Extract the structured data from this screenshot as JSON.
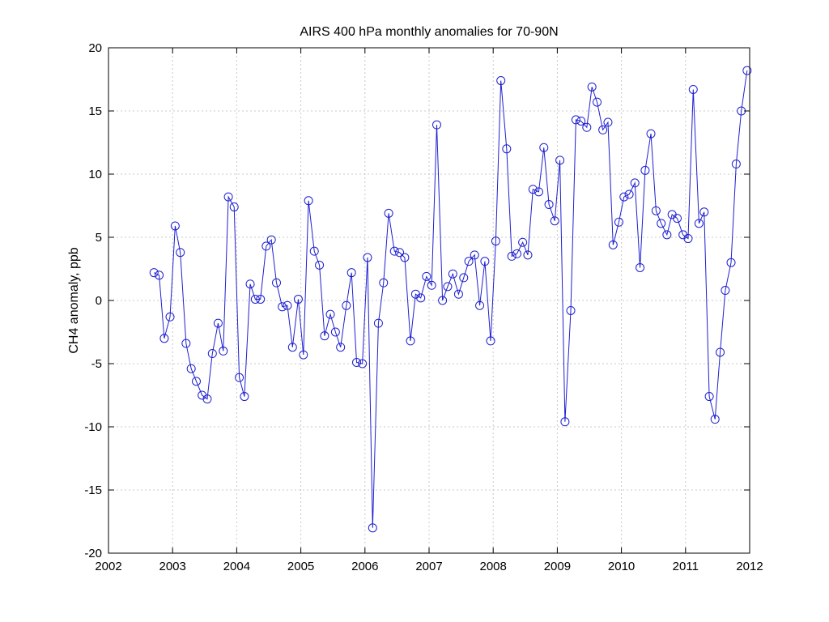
{
  "chart_data": {
    "type": "line",
    "title": "AIRS 400 hPa monthly anomalies for  70-90N",
    "xlabel": "",
    "ylabel": "CH4 anomaly, ppb",
    "xlim": [
      2002,
      2012
    ],
    "ylim": [
      -20,
      20
    ],
    "xticks": [
      "2002",
      "2003",
      "2004",
      "2005",
      "2006",
      "2007",
      "2008",
      "2009",
      "2010",
      "2011",
      "2012"
    ],
    "yticks": [
      "20",
      "15",
      "10",
      "5",
      "0",
      "-5",
      "-10",
      "-15",
      "-20"
    ],
    "grid": true,
    "marker": "circle",
    "line_color": "#1f1fd0",
    "series": [
      {
        "x": [
          2002.71,
          2002.79,
          2002.87,
          2002.96,
          2003.04,
          2003.12,
          2003.21,
          2003.29,
          2003.37,
          2003.46,
          2003.54,
          2003.62,
          2003.71,
          2003.79,
          2003.87,
          2003.96,
          2004.04,
          2004.12,
          2004.21,
          2004.29,
          2004.37,
          2004.46,
          2004.54,
          2004.62,
          2004.71,
          2004.79,
          2004.87,
          2004.96,
          2005.04,
          2005.12,
          2005.21,
          2005.29,
          2005.37,
          2005.46,
          2005.54,
          2005.62,
          2005.71,
          2005.79,
          2005.87,
          2005.96,
          2006.04,
          2006.12,
          2006.21,
          2006.29,
          2006.37,
          2006.46,
          2006.54,
          2006.62,
          2006.71,
          2006.79,
          2006.87,
          2006.96,
          2007.04,
          2007.12,
          2007.21,
          2007.29,
          2007.37,
          2007.46,
          2007.54,
          2007.62,
          2007.71,
          2007.79,
          2007.87,
          2007.96,
          2008.04,
          2008.12,
          2008.21,
          2008.29,
          2008.37,
          2008.46,
          2008.54,
          2008.62,
          2008.71,
          2008.79,
          2008.87,
          2008.96,
          2009.04,
          2009.12,
          2009.21,
          2009.29,
          2009.37,
          2009.46,
          2009.54,
          2009.62,
          2009.71,
          2009.79,
          2009.87,
          2009.96,
          2010.04,
          2010.12,
          2010.21,
          2010.29,
          2010.37,
          2010.46,
          2010.54,
          2010.62,
          2010.71,
          2010.79,
          2010.87,
          2010.96,
          2011.04,
          2011.12,
          2011.21,
          2011.29,
          2011.37,
          2011.46,
          2011.54,
          2011.62,
          2011.71,
          2011.79,
          2011.87,
          2011.96
        ],
        "y": [
          2.2,
          2.0,
          -3.0,
          -1.3,
          5.9,
          3.8,
          -3.4,
          -5.4,
          -6.4,
          -7.5,
          -7.8,
          -4.2,
          -1.8,
          -4.0,
          8.2,
          7.4,
          -6.1,
          -7.6,
          1.3,
          0.1,
          0.1,
          4.3,
          4.8,
          1.4,
          -0.5,
          -0.4,
          -3.7,
          0.1,
          -4.3,
          7.9,
          3.9,
          2.8,
          -2.8,
          -1.1,
          -2.5,
          -3.7,
          -0.4,
          2.2,
          -4.9,
          -5.0,
          3.4,
          -18.0,
          -1.8,
          1.4,
          6.9,
          3.9,
          3.8,
          3.4,
          -3.2,
          0.5,
          0.2,
          1.9,
          1.2,
          13.9,
          0.0,
          1.1,
          2.1,
          0.5,
          1.8,
          3.1,
          3.6,
          -0.4,
          3.1,
          -3.2,
          4.7,
          17.4,
          12.0,
          3.5,
          3.7,
          4.6,
          3.6,
          8.8,
          8.6,
          12.1,
          7.6,
          6.3,
          11.1,
          -9.6,
          -0.8,
          14.3,
          14.2,
          13.7,
          16.9,
          15.7,
          13.5,
          14.1,
          4.4,
          6.2,
          8.2,
          8.4,
          9.3,
          2.6,
          10.3,
          13.2,
          7.1,
          6.1,
          5.2,
          6.8,
          6.5,
          5.2,
          4.9,
          16.7,
          6.1,
          7.0,
          -7.6,
          -9.4,
          -4.1,
          0.8,
          3.0,
          10.8,
          15.0,
          18.2
        ]
      }
    ]
  }
}
